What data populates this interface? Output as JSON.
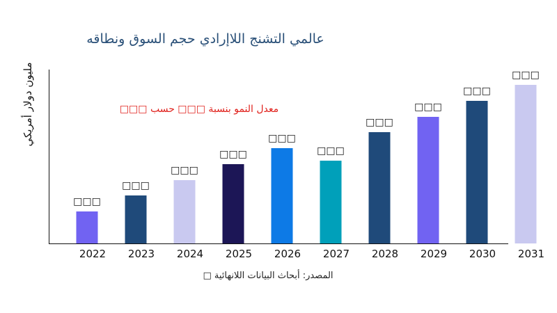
{
  "chart_data": {
    "type": "bar",
    "title": "عالمي التشنج اللاإرادي حجم السوق ونطاقه",
    "xlabel": "",
    "ylabel": "مليون دولار أمريكي",
    "categories": [
      "2022",
      "2023",
      "2024",
      "2025",
      "2026",
      "2027",
      "2028",
      "2029",
      "2030",
      "2031"
    ],
    "values": [
      46,
      69,
      91,
      114,
      137,
      119,
      160,
      182,
      205,
      228
    ],
    "data_labels": [
      "□□□",
      "□□□",
      "□□□",
      "□□□",
      "□□□",
      "□□□",
      "□□□",
      "□□□",
      "□□□",
      "□□□"
    ],
    "colors": [
      "#7163f2",
      "#1f4a7a",
      "#c9c9f0",
      "#1c1656",
      "#0d7ae6",
      "#00a0ba",
      "#1f4a7a",
      "#7163f2",
      "#1f4a7a",
      "#c9c9f0"
    ],
    "annotation": "معدل النمو بنسبة □□□ حسب □□□",
    "source": "المصدر: أبحاث البيانات اللانهائية □",
    "grid": false,
    "y_ticks_shown": false
  }
}
